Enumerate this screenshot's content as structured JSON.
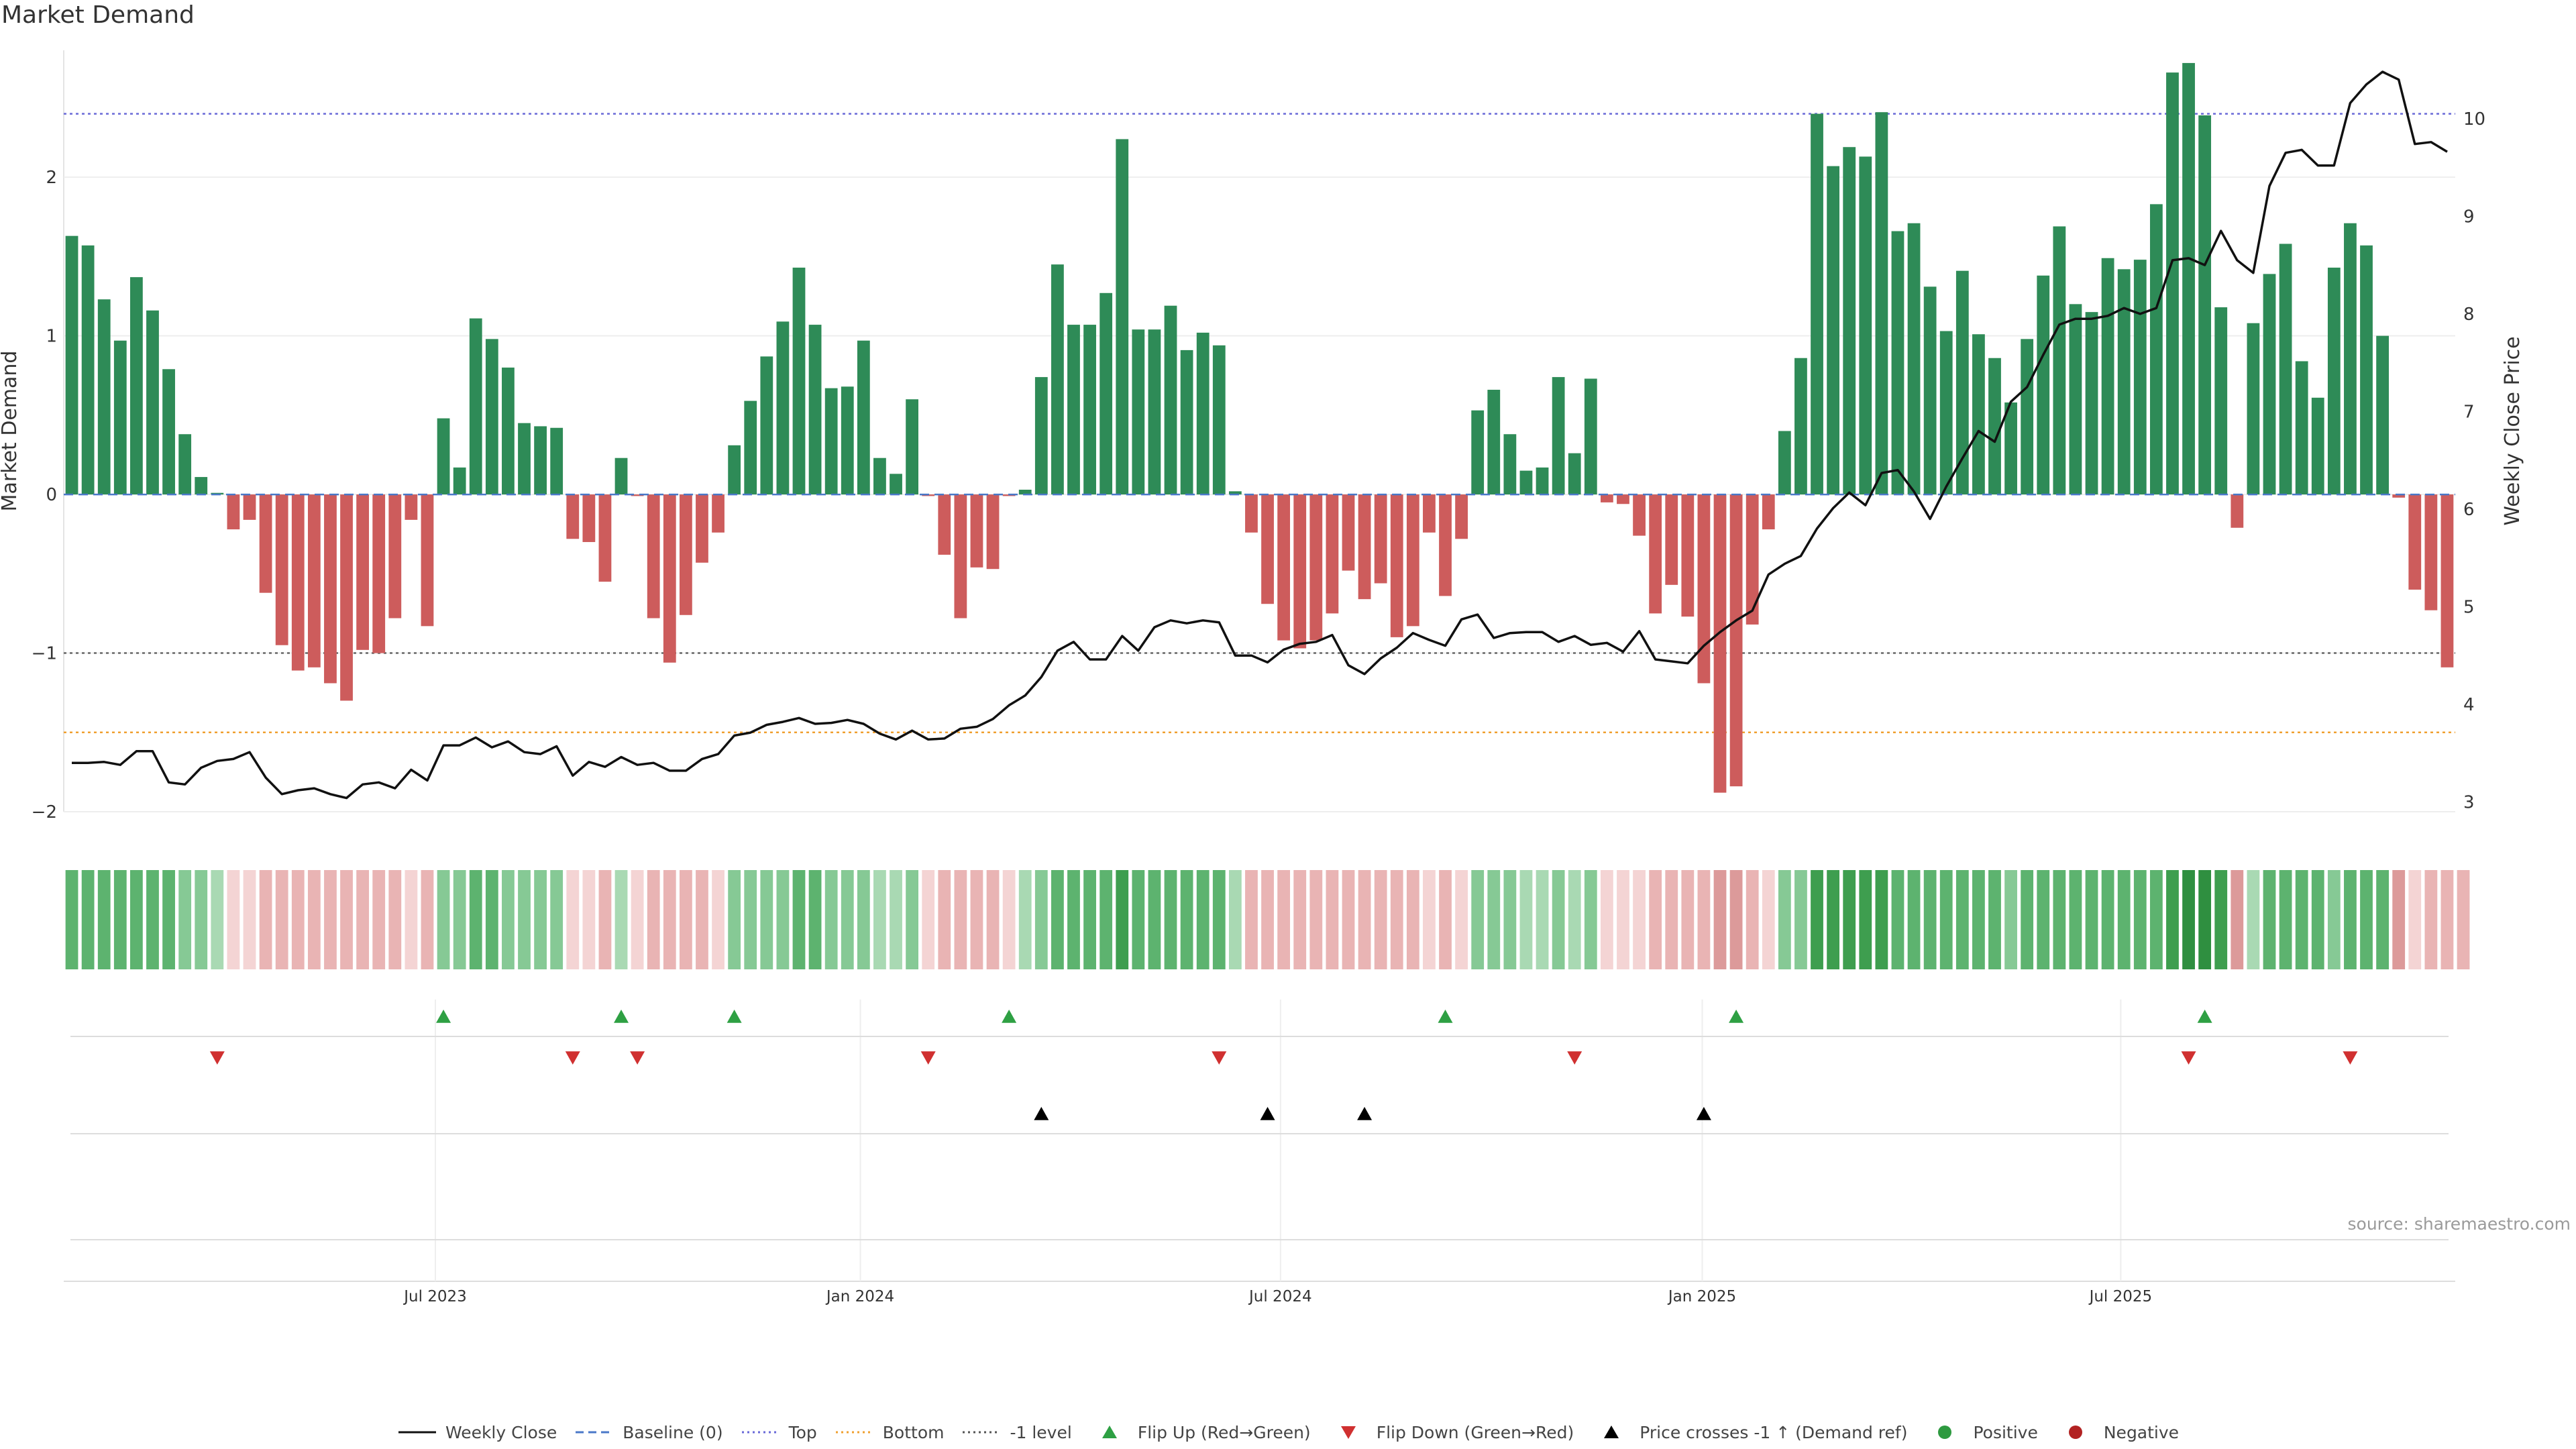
{
  "chart_data": {
    "type": "bar",
    "title": "Market Demand",
    "ylabel": "Market Demand",
    "y2label": "Weekly Close Price",
    "ylim": [
      -2,
      2.8
    ],
    "y2lim": [
      2.9,
      10.7
    ],
    "yticks": [
      -2,
      -1,
      0,
      1,
      2
    ],
    "y2ticks": [
      3,
      4,
      5,
      6,
      7,
      8,
      9,
      10
    ],
    "xticks": [
      {
        "label": "Jul 2023",
        "week": 22.5
      },
      {
        "label": "Jan 2024",
        "week": 48.8
      },
      {
        "label": "Jul 2024",
        "week": 74.8
      },
      {
        "label": "Jan 2025",
        "week": 100.9
      },
      {
        "label": "Jul 2025",
        "week": 126.8
      }
    ],
    "reference_lines": {
      "top": 2.4,
      "bottom": -1.5,
      "minus_one": -1.0,
      "baseline": 0
    },
    "series": [
      {
        "name": "Market Demand",
        "values": [
          1.63,
          1.57,
          1.23,
          0.97,
          1.37,
          1.16,
          0.79,
          0.38,
          0.11,
          0.01,
          -0.22,
          -0.16,
          -0.62,
          -0.95,
          -1.11,
          -1.09,
          -1.19,
          -1.3,
          -0.98,
          -1.0,
          -0.78,
          -0.16,
          -0.83,
          0.48,
          0.17,
          1.11,
          0.98,
          0.8,
          0.45,
          0.43,
          0.42,
          -0.28,
          -0.3,
          -0.55,
          0.23,
          -0.01,
          -0.78,
          -1.06,
          -0.76,
          -0.43,
          -0.24,
          0.31,
          0.59,
          0.87,
          1.09,
          1.43,
          1.07,
          0.67,
          0.68,
          0.97,
          0.23,
          0.13,
          0.6,
          -0.01,
          -0.38,
          -0.78,
          -0.46,
          -0.47,
          -0.01,
          0.03,
          0.74,
          1.45,
          1.07,
          1.07,
          1.27,
          2.24,
          1.04,
          1.04,
          1.19,
          0.91,
          1.02,
          0.94,
          0.02,
          -0.24,
          -0.69,
          -0.92,
          -0.97,
          -0.92,
          -0.75,
          -0.48,
          -0.66,
          -0.56,
          -0.9,
          -0.83,
          -0.24,
          -0.64,
          -0.28,
          0.53,
          0.66,
          0.38,
          0.15,
          0.17,
          0.74,
          0.26,
          0.73,
          -0.05,
          -0.06,
          -0.26,
          -0.75,
          -0.57,
          -0.77,
          -1.19,
          -1.88,
          -1.84,
          -0.82,
          -0.22,
          0.4,
          0.86,
          2.4,
          2.07,
          2.19,
          2.13,
          2.41,
          1.66,
          1.71,
          1.31,
          1.03,
          1.41,
          1.01,
          0.86,
          0.58,
          0.98,
          1.38,
          1.69,
          1.2,
          1.15,
          1.49,
          1.42,
          1.48,
          1.83,
          2.66,
          2.72,
          2.39,
          1.18,
          -0.21,
          1.08,
          1.39,
          1.58,
          0.84,
          0.61,
          1.43,
          1.71,
          1.57,
          1.0,
          -0.02,
          -0.6,
          -0.73,
          -1.09
        ]
      },
      {
        "name": "Weekly Close",
        "values": [
          3.4,
          3.4,
          3.41,
          3.38,
          3.52,
          3.52,
          3.2,
          3.18,
          3.35,
          3.42,
          3.44,
          3.51,
          3.25,
          3.08,
          3.12,
          3.14,
          3.08,
          3.04,
          3.18,
          3.2,
          3.14,
          3.33,
          3.22,
          3.58,
          3.58,
          3.66,
          3.56,
          3.62,
          3.51,
          3.49,
          3.57,
          3.27,
          3.41,
          3.36,
          3.46,
          3.38,
          3.4,
          3.32,
          3.32,
          3.44,
          3.49,
          3.68,
          3.71,
          3.79,
          3.82,
          3.86,
          3.8,
          3.81,
          3.84,
          3.8,
          3.7,
          3.64,
          3.73,
          3.64,
          3.65,
          3.75,
          3.77,
          3.85,
          3.99,
          4.09,
          4.28,
          4.55,
          4.64,
          4.46,
          4.46,
          4.7,
          4.55,
          4.79,
          4.86,
          4.83,
          4.86,
          4.84,
          4.5,
          4.5,
          4.43,
          4.56,
          4.62,
          4.64,
          4.71,
          4.4,
          4.31,
          4.47,
          4.58,
          4.73,
          4.66,
          4.6,
          4.87,
          4.92,
          4.68,
          4.73,
          4.74,
          4.74,
          4.64,
          4.7,
          4.61,
          4.63,
          4.54,
          4.75,
          4.46,
          4.44,
          4.42,
          4.6,
          4.74,
          4.86,
          4.96,
          5.33,
          5.44,
          5.52,
          5.8,
          6.01,
          6.17,
          6.04,
          6.37,
          6.4,
          6.18,
          5.9,
          6.23,
          6.52,
          6.8,
          6.69,
          7.1,
          7.25,
          7.58,
          7.89,
          7.95,
          7.95,
          7.98,
          8.06,
          8.0,
          8.06,
          8.55,
          8.57,
          8.5,
          8.85,
          8.55,
          8.42,
          9.31,
          9.65,
          9.68,
          9.52,
          9.52,
          10.16,
          10.35,
          10.48,
          10.4,
          9.74,
          9.76,
          9.66
        ]
      }
    ],
    "heat_strip": [
      3,
      3,
      3,
      3,
      3,
      3,
      3,
      2,
      2,
      1,
      1,
      1,
      2,
      2,
      2,
      2,
      2,
      2,
      2,
      2,
      2,
      1,
      2,
      2,
      2,
      3,
      3,
      2,
      2,
      2,
      2,
      1,
      1,
      2,
      1,
      1,
      2,
      2,
      2,
      2,
      1,
      2,
      2,
      2,
      2,
      3,
      3,
      2,
      2,
      2,
      1,
      1,
      2,
      1,
      2,
      2,
      2,
      2,
      1,
      1,
      2,
      3,
      3,
      3,
      3,
      4,
      3,
      3,
      3,
      3,
      3,
      3,
      1,
      2,
      2,
      2,
      2,
      2,
      2,
      2,
      2,
      2,
      2,
      2,
      1,
      2,
      1,
      2,
      2,
      2,
      1,
      1,
      2,
      1,
      2,
      1,
      1,
      1,
      2,
      2,
      2,
      2,
      3,
      3,
      2,
      1,
      2,
      2,
      4,
      4,
      4,
      4,
      4,
      3,
      3,
      3,
      3,
      3,
      3,
      3,
      2,
      3,
      3,
      3,
      3,
      3,
      3,
      3,
      3,
      3,
      4,
      5,
      5,
      4,
      3,
      1,
      3,
      3,
      3,
      3,
      2,
      3,
      3,
      3,
      3,
      1,
      2,
      2,
      2
    ],
    "flip_up_weeks": [
      23,
      34,
      41,
      58,
      85,
      103,
      132
    ],
    "flip_down_weeks": [
      9,
      31,
      35,
      53,
      71,
      93,
      131,
      141
    ],
    "price_cross_weeks": [
      60,
      74,
      80,
      101
    ],
    "source": "source: sharemaestro.com"
  },
  "legend": [
    {
      "label": "Weekly Close",
      "kind": "line-solid",
      "color": "#111111"
    },
    {
      "label": "Baseline (0)",
      "kind": "line-dash",
      "color": "#4a78c8"
    },
    {
      "label": "Top",
      "kind": "line-dot",
      "color": "#6a6ad8"
    },
    {
      "label": "Bottom",
      "kind": "line-dot",
      "color": "#f0a030"
    },
    {
      "label": "-1 level",
      "kind": "line-dot",
      "color": "#555555"
    },
    {
      "label": "Flip Up (Red→Green)",
      "kind": "tri-up",
      "color": "#2ea043"
    },
    {
      "label": "Flip Down (Green→Red)",
      "kind": "tri-down",
      "color": "#d03030"
    },
    {
      "label": "Price crosses -1 ↑ (Demand ref)",
      "kind": "tri-up",
      "color": "#000000"
    },
    {
      "label": "Positive",
      "kind": "dot",
      "color": "#2e9a40"
    },
    {
      "label": "Negative",
      "kind": "dot",
      "color": "#b22222"
    }
  ],
  "colors": {
    "positive_bar": "#2e8b57",
    "negative_bar": "#cd5c5c",
    "price_line": "#111111"
  }
}
